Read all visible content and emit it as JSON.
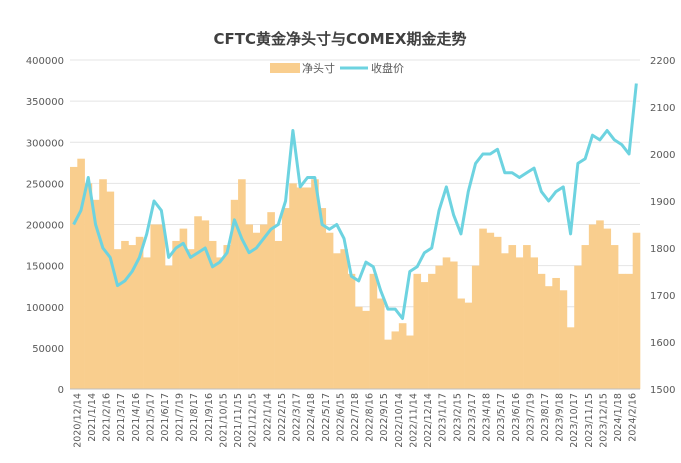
{
  "chart_data": {
    "type": "bar+line",
    "title": "CFTC黄金净头寸与COMEX期金走势",
    "legend": [
      "净头寸",
      "收盘价"
    ],
    "legend_position": "top-center",
    "colors": {
      "bar": "#F9CE8E",
      "line": "#6DD3E0",
      "grid": "#E4E4E4",
      "text": "#595959"
    },
    "y_left": {
      "ylim": [
        0,
        400000
      ],
      "ticks": [
        0,
        50000,
        100000,
        150000,
        200000,
        250000,
        300000,
        350000,
        400000
      ]
    },
    "y_right": {
      "ylim": [
        1500,
        2200
      ],
      "ticks": [
        1500,
        1600,
        1700,
        1800,
        1900,
        2000,
        2100,
        2200
      ]
    },
    "x_tick_labels": [
      "2020/12/14",
      "2021/1/14",
      "2021/2/16",
      "2021/3/17",
      "2021/4/16",
      "2021/5/17",
      "2021/6/17",
      "2021/7/19",
      "2021/8/17",
      "2021/9/16",
      "2021/10/15",
      "2021/11/15",
      "2021/12/15",
      "2022/1/14",
      "2022/2/15",
      "2022/3/17",
      "2022/4/18",
      "2022/5/17",
      "2022/6/15",
      "2022/7/18",
      "2022/8/16",
      "2022/9/15",
      "2022/10/14",
      "2022/11/14",
      "2022/12/14",
      "2023/1/17",
      "2023/2/15",
      "2023/3/17",
      "2023/4/18",
      "2023/5/17",
      "2023/6/16",
      "2023/7/19",
      "2023/8/17",
      "2023/9/18",
      "2023/10/17",
      "2023/11/15",
      "2023/12/15",
      "2024/1/18",
      "2024/2/16"
    ],
    "series": [
      {
        "name": "净头寸",
        "type": "bar",
        "axis": "left",
        "values": [
          270000,
          280000,
          250000,
          230000,
          255000,
          240000,
          170000,
          180000,
          175000,
          185000,
          160000,
          200000,
          200000,
          150000,
          180000,
          195000,
          170000,
          210000,
          205000,
          180000,
          160000,
          175000,
          230000,
          255000,
          200000,
          190000,
          200000,
          215000,
          180000,
          220000,
          250000,
          245000,
          245000,
          255000,
          220000,
          190000,
          165000,
          170000,
          140000,
          100000,
          95000,
          140000,
          110000,
          60000,
          70000,
          80000,
          65000,
          140000,
          130000,
          140000,
          150000,
          160000,
          155000,
          110000,
          105000,
          150000,
          195000,
          190000,
          185000,
          165000,
          175000,
          160000,
          175000,
          160000,
          140000,
          125000,
          135000,
          120000,
          75000,
          150000,
          175000,
          200000,
          205000,
          195000,
          175000,
          140000,
          140000,
          190000
        ]
      },
      {
        "name": "收盘价",
        "type": "line",
        "axis": "right",
        "values": [
          1850,
          1880,
          1950,
          1850,
          1800,
          1780,
          1720,
          1730,
          1750,
          1780,
          1830,
          1900,
          1880,
          1780,
          1800,
          1810,
          1780,
          1790,
          1800,
          1760,
          1770,
          1790,
          1860,
          1820,
          1790,
          1800,
          1820,
          1840,
          1850,
          1900,
          2050,
          1930,
          1950,
          1950,
          1850,
          1840,
          1850,
          1820,
          1740,
          1730,
          1770,
          1760,
          1710,
          1670,
          1670,
          1650,
          1750,
          1760,
          1790,
          1800,
          1880,
          1930,
          1870,
          1830,
          1920,
          1980,
          2000,
          2000,
          2010,
          1960,
          1960,
          1950,
          1960,
          1970,
          1920,
          1900,
          1920,
          1930,
          1830,
          1980,
          1990,
          2040,
          2030,
          2050,
          2030,
          2020,
          2000,
          2150
        ]
      }
    ]
  }
}
